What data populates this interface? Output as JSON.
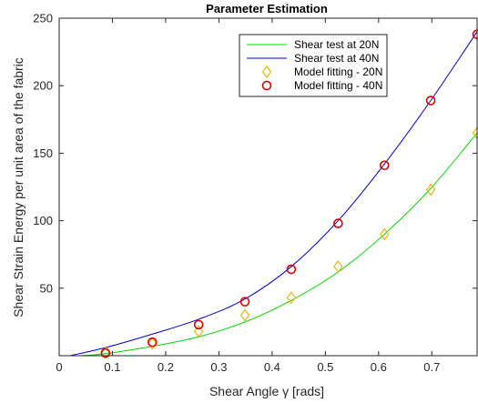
{
  "chart_data": {
    "type": "line",
    "title": "Parameter Estimation",
    "xlabel": "Shear Angle γ [rads]",
    "ylabel": "Shear Strain Energy per unit area of the fabric",
    "xlim": [
      0,
      0.785
    ],
    "ylim": [
      0,
      250
    ],
    "xticks": [
      0,
      0.1,
      0.2,
      0.3,
      0.4,
      0.5,
      0.6,
      0.7
    ],
    "yticks": [
      50,
      100,
      150,
      200,
      250
    ],
    "grid": false,
    "legend_position": "top-right",
    "series": [
      {
        "name": "Shear test at 20N",
        "kind": "line",
        "color": "#00d800",
        "x": [
          0.04,
          0.087,
          0.175,
          0.262,
          0.349,
          0.436,
          0.524,
          0.611,
          0.698,
          0.785
        ],
        "y": [
          0,
          1.5,
          7,
          14,
          25,
          41,
          62,
          90,
          124,
          165
        ]
      },
      {
        "name": "Shear test at 40N",
        "kind": "line",
        "color": "#0000c8",
        "x": [
          0.02,
          0.087,
          0.175,
          0.262,
          0.349,
          0.436,
          0.524,
          0.611,
          0.698,
          0.785
        ],
        "y": [
          0,
          6,
          16,
          27,
          42,
          66,
          100,
          142,
          189,
          240
        ]
      },
      {
        "name": "Model fitting - 20N",
        "kind": "marker",
        "marker": "diamond",
        "color": "#e6b800",
        "x": [
          0.087,
          0.175,
          0.262,
          0.349,
          0.436,
          0.524,
          0.611,
          0.698,
          0.785
        ],
        "y": [
          2,
          9,
          18,
          30,
          43,
          66,
          90,
          123,
          165
        ]
      },
      {
        "name": "Model fitting - 40N",
        "kind": "marker",
        "marker": "circle",
        "color": "#e00000",
        "x": [
          0.087,
          0.175,
          0.262,
          0.349,
          0.436,
          0.524,
          0.611,
          0.698,
          0.785
        ],
        "y": [
          2,
          10,
          23,
          40,
          64,
          98,
          141,
          189,
          238
        ]
      }
    ]
  }
}
